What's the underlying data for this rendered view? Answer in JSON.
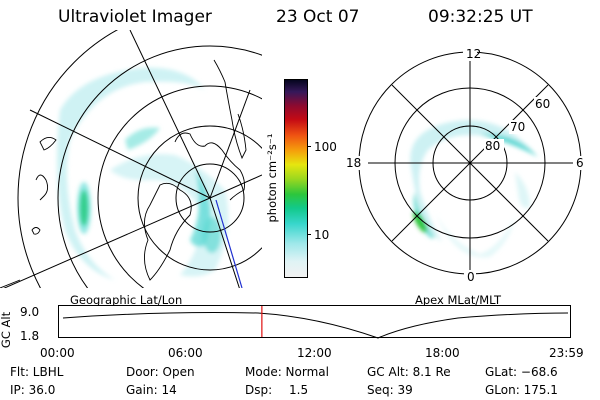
{
  "header": {
    "title": "Ultraviolet Imager",
    "date": "23 Oct 07",
    "time": "09:32:25 UT"
  },
  "colorbar": {
    "unit_label": "photon cm⁻²s⁻¹",
    "ticks": [
      "100",
      "10"
    ],
    "scale": "log",
    "colors": [
      "#f2f2f2",
      "#dff3f5",
      "#9fe8ea",
      "#38d6cc",
      "#12c98a",
      "#2dc63c",
      "#9ed81e",
      "#e6e60f",
      "#f5a10c",
      "#ef5212",
      "#c40a14",
      "#8c0a30",
      "#35185a",
      "#05051e"
    ]
  },
  "left_map": {
    "label": "Geographic Lat/Lon"
  },
  "right_map": {
    "label": "Apex MLat/MLT",
    "lat_labels": [
      "60",
      "70",
      "80"
    ],
    "mlt_labels": [
      "12",
      "18",
      "6",
      "0"
    ]
  },
  "altitude_plot": {
    "axis_label": "GC Alt",
    "y_ticks": [
      "9.0",
      "1.8"
    ],
    "x_ticks": [
      "00:00",
      "06:00",
      "12:00",
      "18:00",
      "23:59"
    ],
    "current_time_fraction": 0.397,
    "marker_color": "#e01010"
  },
  "status": {
    "row1": {
      "flt": "Flt: LBHL",
      "door": "Door: Open",
      "mode": "Mode: Normal",
      "gcalt": "GC Alt: 8.1 Re",
      "glat": "GLat: −68.6"
    },
    "row2": {
      "ip": "IP: 36.0",
      "gain": "Gain: 14",
      "dsp_label": "Dsp:",
      "dsp_value": "1.5",
      "seq": "Seq: 39",
      "glon": "GLon: 175.1"
    }
  }
}
